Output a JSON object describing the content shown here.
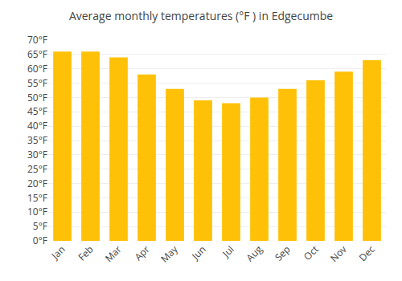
{
  "chart_data": {
    "type": "bar",
    "title": "Average monthly temperatures (°F ) in Edgecumbe",
    "categories": [
      "Jan",
      "Feb",
      "Mar",
      "Apr",
      "May",
      "Jun",
      "Jul",
      "Aug",
      "Sep",
      "Oct",
      "Nov",
      "Dec"
    ],
    "values": [
      66,
      66,
      64,
      58,
      53,
      49,
      48,
      50,
      53,
      56,
      59,
      63
    ],
    "color": "#FFC107",
    "ylim": [
      0,
      70
    ],
    "yticks": [
      {
        "value": 0,
        "label": "0°F"
      },
      {
        "value": 5,
        "label": "5°F"
      },
      {
        "value": 10,
        "label": "10°F"
      },
      {
        "value": 15,
        "label": "15°F"
      },
      {
        "value": 20,
        "label": "20°F"
      },
      {
        "value": 25,
        "label": "25°F"
      },
      {
        "value": 30,
        "label": "30°F"
      },
      {
        "value": 35,
        "label": "35°F"
      },
      {
        "value": 40,
        "label": "40°F"
      },
      {
        "value": 45,
        "label": "45°F"
      },
      {
        "value": 50,
        "label": "50°F"
      },
      {
        "value": 55,
        "label": "55°F"
      },
      {
        "value": 60,
        "label": "60°F"
      },
      {
        "value": 65,
        "label": "65°F"
      },
      {
        "value": 70,
        "label": "70°F"
      }
    ],
    "grid": true
  }
}
